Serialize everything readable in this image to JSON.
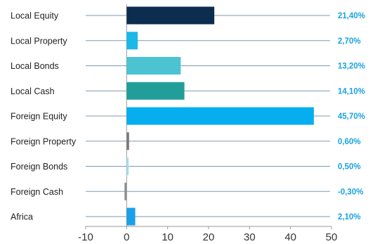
{
  "chart_data": {
    "type": "bar",
    "orientation": "horizontal",
    "categories": [
      "Local Equity",
      "Local Property",
      "Local Bonds",
      "Local Cash",
      "Foreign Equity",
      "Foreign Property",
      "Foreign Bonds",
      "Foreign Cash",
      "Africa"
    ],
    "values": [
      21.4,
      2.7,
      13.2,
      14.1,
      45.7,
      0.6,
      0.5,
      -0.3,
      2.1
    ],
    "value_labels": [
      "21,40%",
      "2,70%",
      "13,20%",
      "14,10%",
      "45,70%",
      "0,60%",
      "0,50%",
      "-0,30%",
      "2,10%"
    ],
    "bar_colors": [
      "#0c2d4f",
      "#1bb8e8",
      "#4cc3d0",
      "#229e9a",
      "#06aef0",
      "#7a7a7a",
      "#a8def3",
      "#8c8c8c",
      "#1aa0e8"
    ],
    "xlim": [
      -10,
      50
    ],
    "xticks": [
      -10,
      0,
      10,
      20,
      30,
      40,
      50
    ],
    "xtick_labels": [
      "-10",
      "0",
      "10",
      "20",
      "30",
      "40",
      "50"
    ],
    "title": "",
    "xlabel": "",
    "ylabel": "",
    "grid": true,
    "legend": "none",
    "colors": {
      "guide_line": "#7f9aaf",
      "value_label": "#1aa3e0",
      "axis": "#9a9a9a"
    }
  }
}
